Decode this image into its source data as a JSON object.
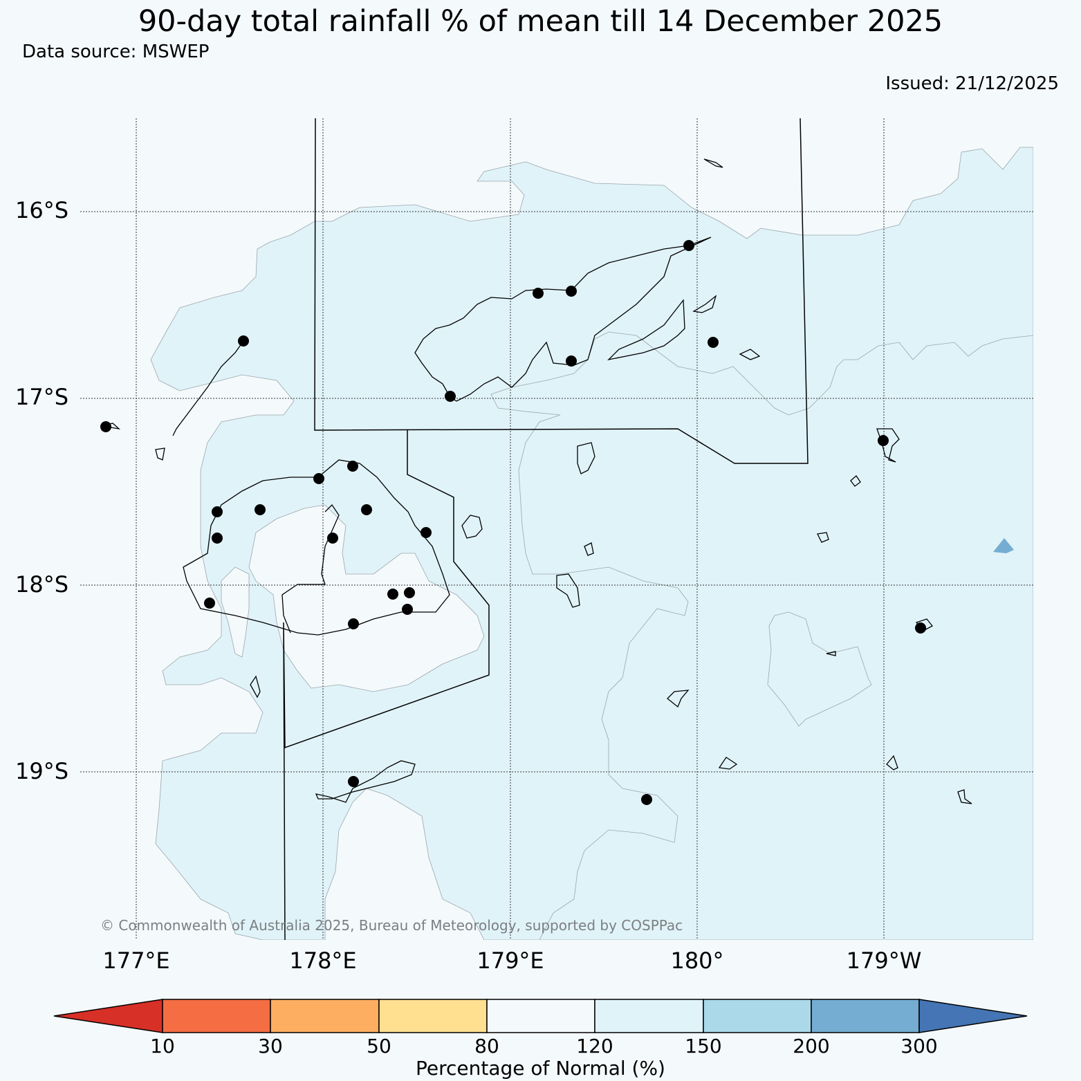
{
  "title": "90-day total rainfall % of mean till 14 December 2025",
  "subtitle": "Data source: MSWEP",
  "issued": "Issued: 21/12/2025",
  "copyright": "© Commonwealth of Australia 2025, Bureau of Meteorology, supported by COSPPac",
  "map": {
    "lat_labels": [
      "16°S",
      "17°S",
      "18°S",
      "19°S"
    ],
    "lon_labels": [
      "177°E",
      "178°E",
      "179°E",
      "180°",
      "179°W"
    ],
    "colors": {
      "background": "#f4f9fc",
      "band_80_120": "#f4f9fc",
      "band_120_150": "#e0f3f8",
      "band_150_200": "#abd9e9",
      "band_200_300": "#74add1",
      "coastline": "#000000",
      "station": "#000000"
    }
  },
  "legend": {
    "title": "Percentage of Normal (%)",
    "ticks": [
      "10",
      "30",
      "50",
      "80",
      "120",
      "150",
      "200",
      "300"
    ],
    "colors": [
      "#d73027",
      "#f46d43",
      "#fdae61",
      "#fee090",
      "#f4f9fc",
      "#e0f3f8",
      "#abd9e9",
      "#74add1",
      "#4575b4"
    ]
  }
}
